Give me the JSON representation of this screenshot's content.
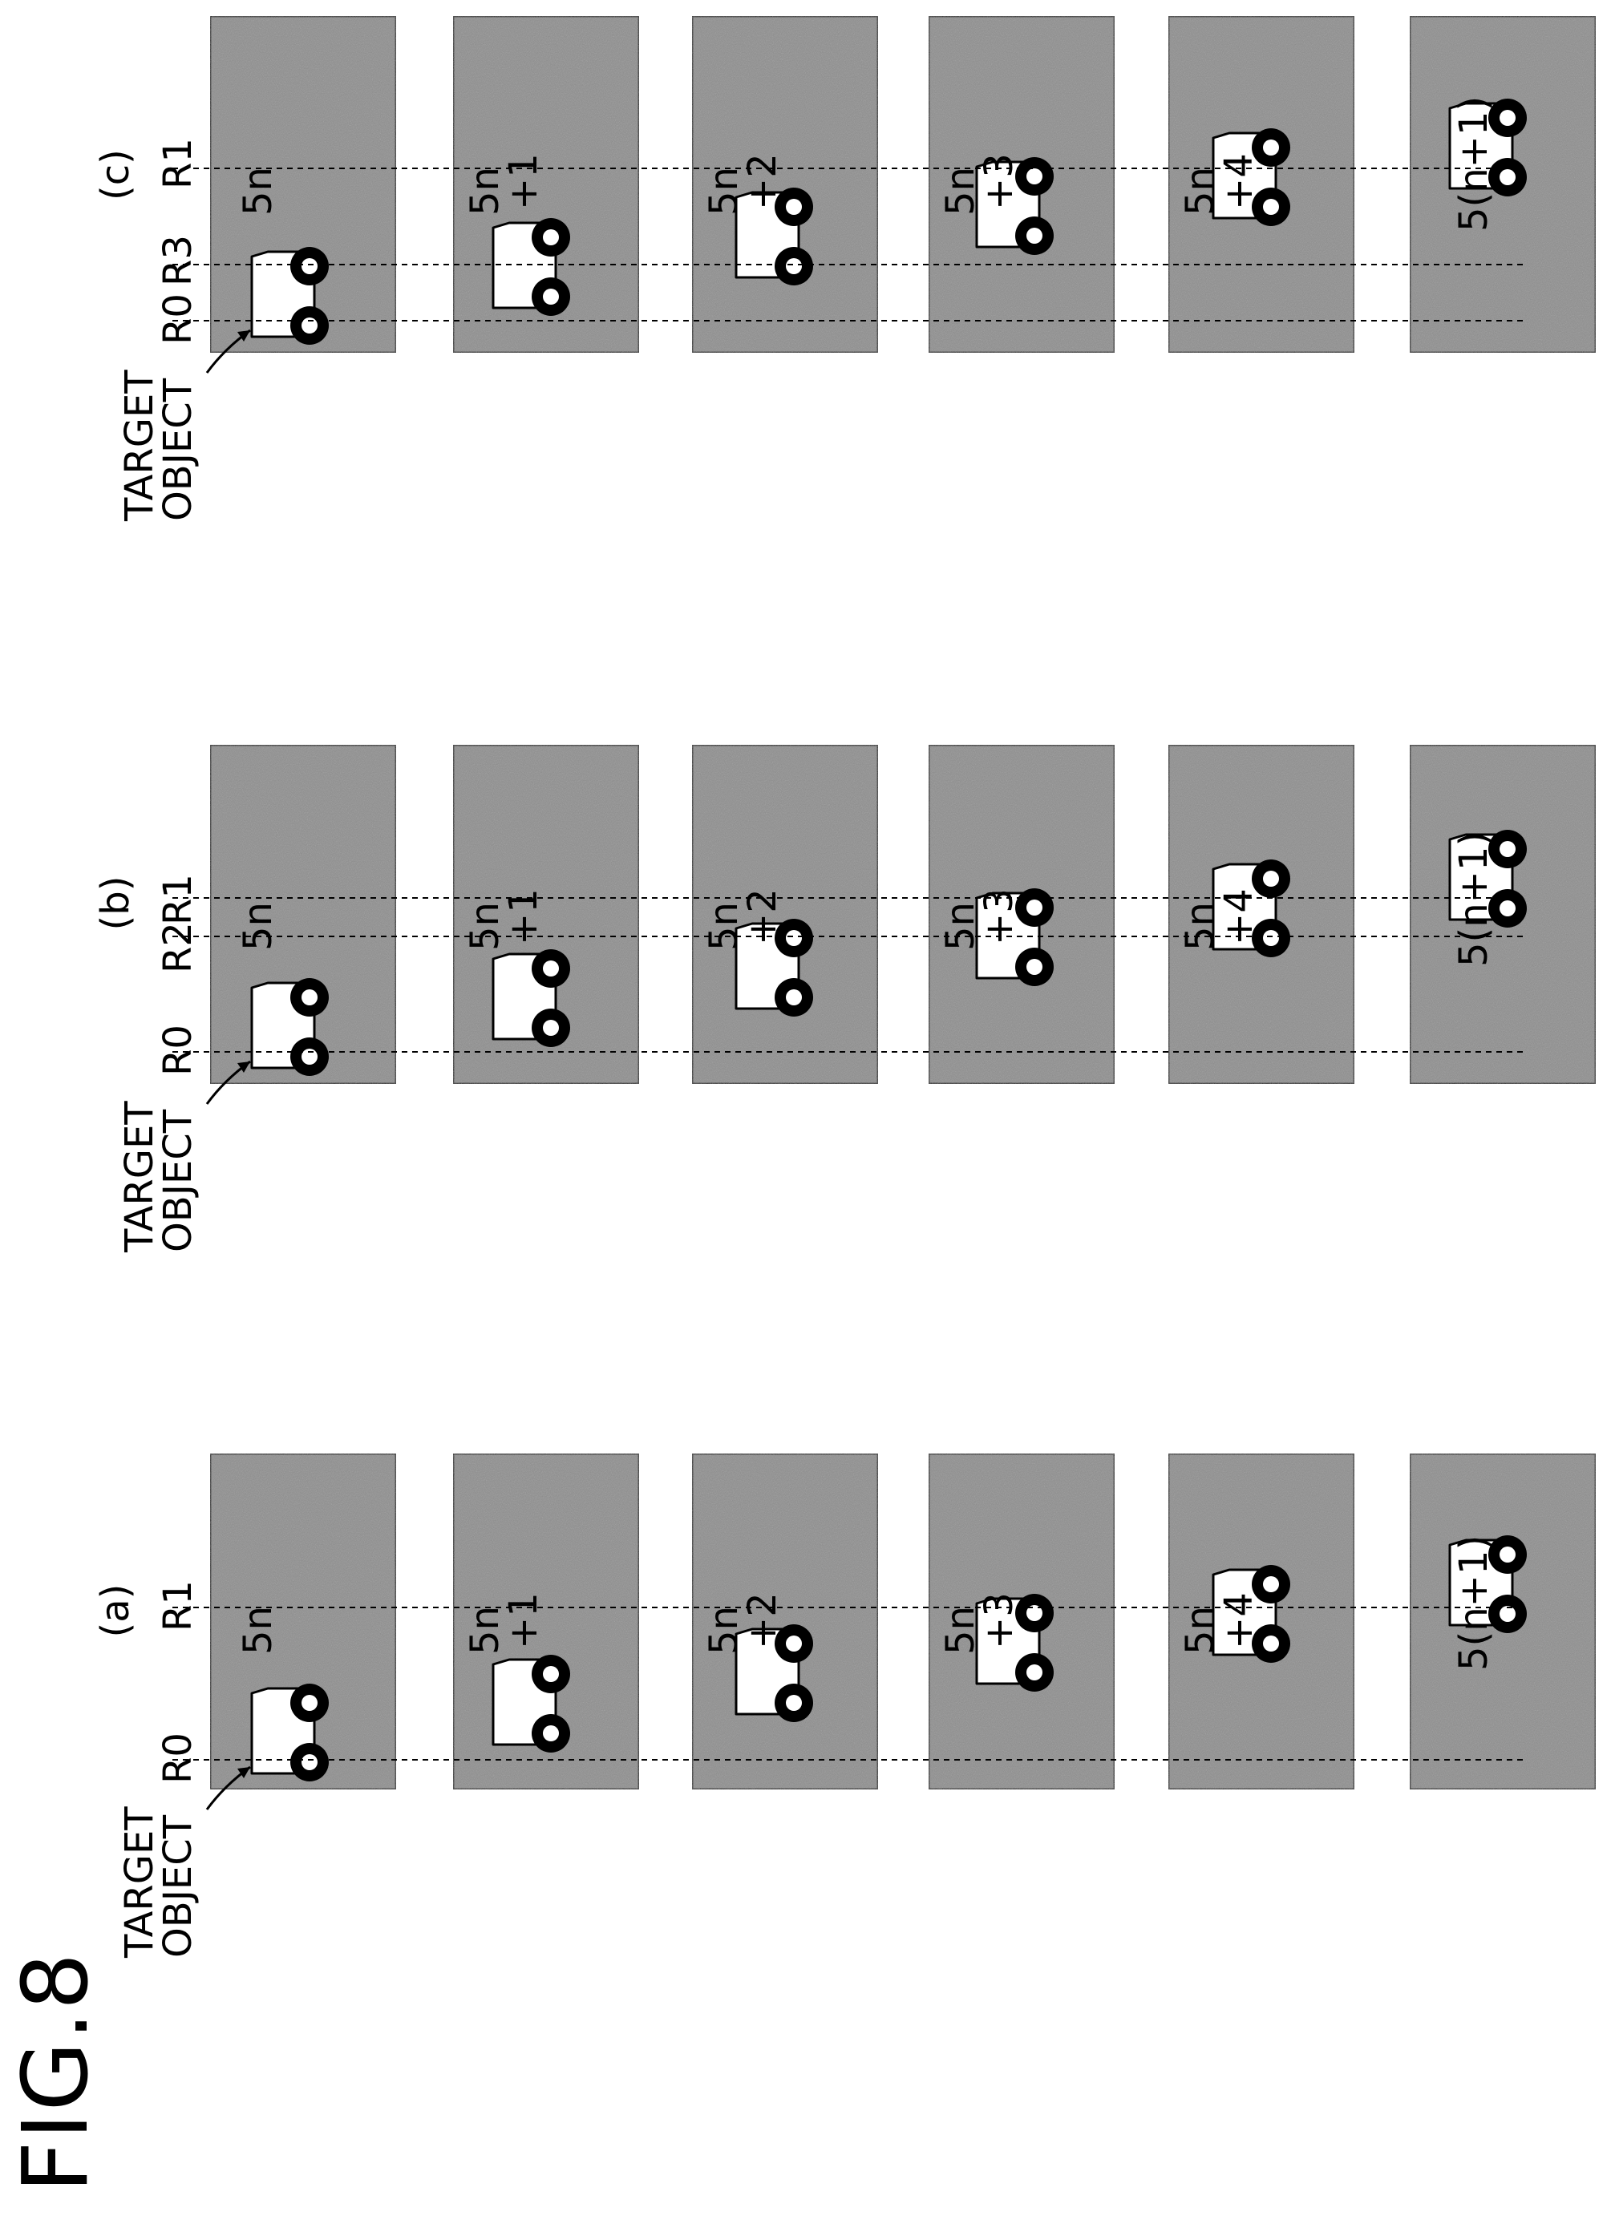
{
  "figure": {
    "title": "FIG.8",
    "frame_color": "#8c8c8c",
    "panels": [
      {
        "id": "a",
        "label": "(a)",
        "target_label_line1": "TARGET",
        "target_label_line2": "OBJECT",
        "ref_labels": [
          "R0",
          "R1"
        ],
        "frames": [
          {
            "l1": "5n",
            "l2": ""
          },
          {
            "l1": "5n",
            "l2": "+1"
          },
          {
            "l1": "5n",
            "l2": "+2"
          },
          {
            "l1": "5n",
            "l2": "+3"
          },
          {
            "l1": "5n",
            "l2": "+4"
          },
          {
            "l1": "5(n+1)",
            "l2": ""
          }
        ]
      },
      {
        "id": "b",
        "label": "(b)",
        "target_label_line1": "TARGET",
        "target_label_line2": "OBJECT",
        "ref_labels": [
          "R0",
          "R2",
          "R1"
        ],
        "frames": [
          {
            "l1": "5n",
            "l2": ""
          },
          {
            "l1": "5n",
            "l2": "+1"
          },
          {
            "l1": "5n",
            "l2": "+2"
          },
          {
            "l1": "5n",
            "l2": "+3"
          },
          {
            "l1": "5n",
            "l2": "+4"
          },
          {
            "l1": "5(n+1)",
            "l2": ""
          }
        ]
      },
      {
        "id": "c",
        "label": "(c)",
        "target_label_line1": "TARGET",
        "target_label_line2": "OBJECT",
        "ref_labels": [
          "R0",
          "R3",
          "R1"
        ],
        "frames": [
          {
            "l1": "5n",
            "l2": ""
          },
          {
            "l1": "5n",
            "l2": "+1"
          },
          {
            "l1": "5n",
            "l2": "+2"
          },
          {
            "l1": "5n",
            "l2": "+3"
          },
          {
            "l1": "5n",
            "l2": "+4"
          },
          {
            "l1": "5(n+1)",
            "l2": ""
          }
        ]
      }
    ]
  }
}
